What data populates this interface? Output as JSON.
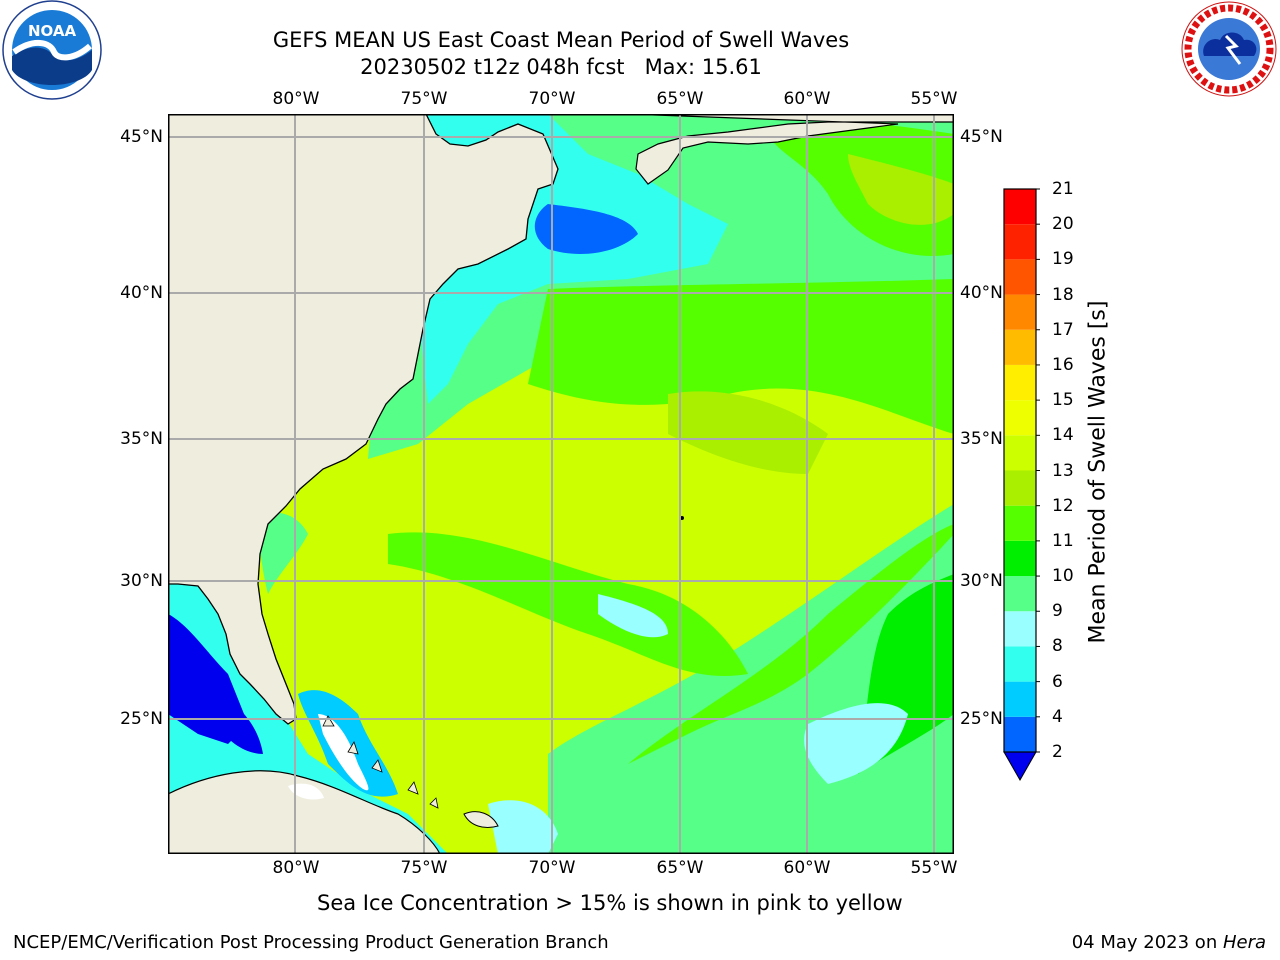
{
  "title": {
    "line1": "GEFS MEAN US East Coast Mean Period of Swell Waves",
    "line2": "20230502 t12z 048h fcst   Max: 15.61"
  },
  "map": {
    "lon_labels": [
      "80°W",
      "75°W",
      "70°W",
      "65°W",
      "60°W",
      "55°W"
    ],
    "lat_labels": [
      "45°N",
      "40°N",
      "35°N",
      "30°N",
      "25°N"
    ],
    "gridline_color": "#aaaaaa",
    "land_color": "#efeede",
    "ocean_dominant_color": "#ccff00"
  },
  "colorbar": {
    "title": "Mean Period of Swell Waves [s]",
    "levels": [
      "2",
      "4",
      "6",
      "8",
      "9",
      "10",
      "11",
      "12",
      "13",
      "14",
      "15",
      "16",
      "17",
      "18",
      "19",
      "20",
      "21"
    ],
    "colors": [
      "#0066ff",
      "#00ccff",
      "#33ffee",
      "#99ffff",
      "#55ff88",
      "#00ee00",
      "#55ff00",
      "#aaee00",
      "#ccff00",
      "#eeff00",
      "#ffee00",
      "#ffbb00",
      "#ff8800",
      "#ff5500",
      "#ff2200",
      "#ff0000"
    ],
    "underflow_color": "#0000ee"
  },
  "logos": {
    "noaa_text": "NOAA",
    "noaa_ring": "NATIONAL OCEANIC AND ATMOSPHERIC ADMINISTRATION · U.S. DEPARTMENT OF COMMERCE",
    "nws_ring": "NATIONAL WEATHER SERVICE"
  },
  "caption": "Sea Ice Concentration > 15% is shown in pink to yellow",
  "footer": {
    "left": "NCEP/EMC/Verification Post Processing Product Generation Branch",
    "right_date": "04 May 2023 on ",
    "right_host": "Hera"
  }
}
